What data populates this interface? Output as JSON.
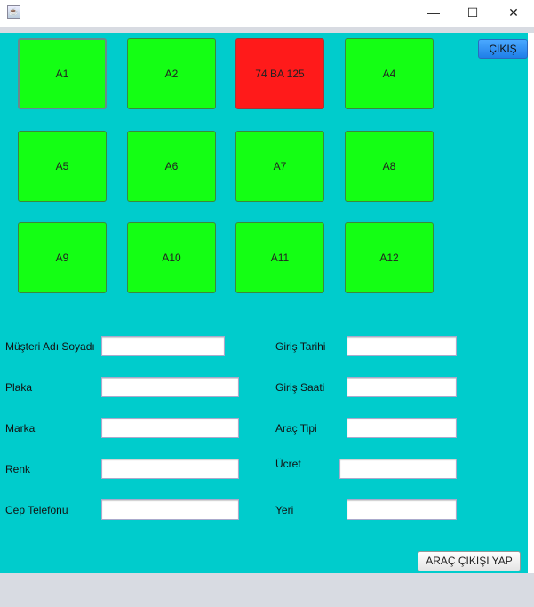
{
  "window": {
    "icon": "java-icon",
    "controls": [
      "minimize",
      "maximize",
      "close"
    ]
  },
  "exit_button": "ÇIKIŞ",
  "slots": [
    {
      "label": "A1",
      "occupied": false
    },
    {
      "label": "A2",
      "occupied": false
    },
    {
      "label": "74 BA 125",
      "occupied": true
    },
    {
      "label": "A4",
      "occupied": false
    },
    {
      "label": "A5",
      "occupied": false
    },
    {
      "label": "A6",
      "occupied": false
    },
    {
      "label": "A7",
      "occupied": false
    },
    {
      "label": "A8",
      "occupied": false
    },
    {
      "label": "A9",
      "occupied": false
    },
    {
      "label": "A10",
      "occupied": false
    },
    {
      "label": "A11",
      "occupied": false
    },
    {
      "label": "A12",
      "occupied": false
    }
  ],
  "colors": {
    "free": "#14ff14",
    "occupied": "#ff1a1a",
    "background": "#00cccc"
  },
  "form": {
    "left": [
      {
        "label": "Müşteri Adı Soyadı",
        "value": ""
      },
      {
        "label": "Plaka",
        "value": ""
      },
      {
        "label": "Marka",
        "value": ""
      },
      {
        "label": "Renk",
        "value": ""
      },
      {
        "label": "Cep Telefonu",
        "value": ""
      }
    ],
    "right": [
      {
        "label": "Giriş Tarihi",
        "value": ""
      },
      {
        "label": "Giriş Saati",
        "value": ""
      },
      {
        "label": "Araç Tipi",
        "value": ""
      },
      {
        "label": "Ücret",
        "value": ""
      },
      {
        "label": "Yeri",
        "value": ""
      }
    ]
  },
  "action_button": "ARAÇ ÇIKIŞI YAP"
}
